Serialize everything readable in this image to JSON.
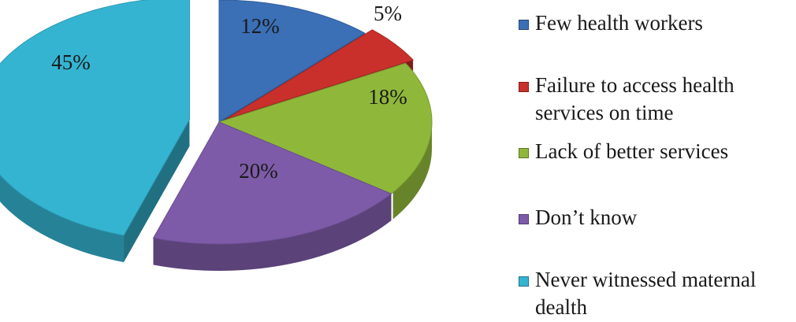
{
  "chart_data": {
    "type": "pie",
    "three_d": true,
    "exploded": true,
    "legend_position": "right",
    "slices": [
      {
        "name": "Few health workers",
        "value": 12,
        "label": "12%",
        "color": "#3b6fb6"
      },
      {
        "name": "Failure to access health services on time",
        "value": 5,
        "label": "5%",
        "color": "#c9302c"
      },
      {
        "name": "Lack of better services",
        "value": 18,
        "label": "18%",
        "color": "#8fb83a"
      },
      {
        "name": "Don’t know",
        "value": 20,
        "label": "20%",
        "color": "#7e5ba8"
      },
      {
        "name": "Never witnessed maternal dealth",
        "value": 45,
        "label": "45%",
        "color": "#35b4d2"
      }
    ]
  }
}
